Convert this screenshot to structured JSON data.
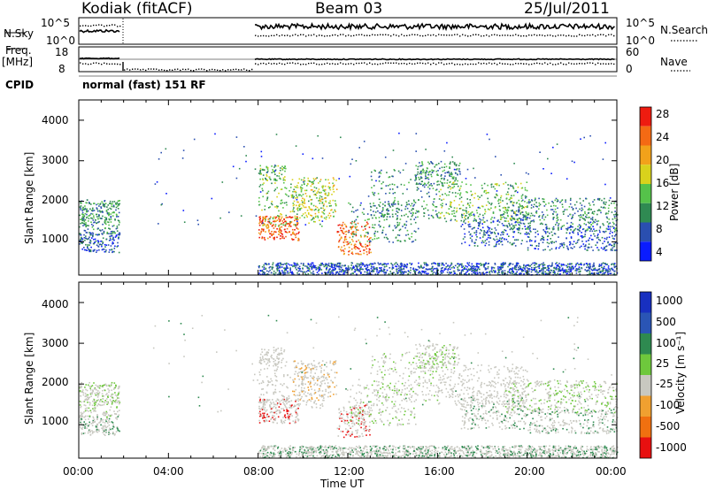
{
  "header": {
    "station": "Kodiak (fitACF)",
    "beam": "Beam 03",
    "date": "25/Jul/2011"
  },
  "strips": {
    "nsky_label": "N.Sky",
    "nsky_ticks": [
      "10^5",
      "10^0"
    ],
    "nsearch_label": "N.Search",
    "nsearch_ticks": [
      "10^5",
      "10^0"
    ],
    "freq_label_1": "Freq.",
    "freq_label_2": "[MHz]",
    "freq_ticks": [
      "18",
      "8"
    ],
    "nave_label": "Nave",
    "nave_ticks": [
      "60",
      "0"
    ],
    "cpid_label": "CPID",
    "cpid_value": "normal (fast) 151 RF"
  },
  "chart_data": [
    {
      "type": "heatmap",
      "name": "power",
      "ylabel": "Slant Range [km]",
      "yticks": [
        "1000",
        "2000",
        "3000",
        "4000"
      ],
      "ylim": [
        180,
        4500
      ],
      "colorbar_label": "Power [dB]",
      "colorbar_ticks": [
        "4",
        "8",
        "12",
        "16",
        "20",
        "24",
        "28"
      ],
      "colorbar_range": [
        0,
        30
      ],
      "colors": [
        "#0a1cff",
        "#2a4fb0",
        "#2f8a52",
        "#55c24a",
        "#d9d21c",
        "#f2a21a",
        "#f46a14",
        "#ee1c10"
      ]
    },
    {
      "type": "heatmap",
      "name": "velocity",
      "ylabel": "Slant Range [km]",
      "yticks": [
        "1000",
        "2000",
        "3000",
        "4000"
      ],
      "ylim": [
        180,
        4500
      ],
      "colorbar_label": "Velocity [m s⁻¹]",
      "colorbar_ticks": [
        "1000",
        "500",
        "100",
        "25",
        "-25",
        "-100",
        "-500",
        "-1000"
      ],
      "colors": [
        "#1830c0",
        "#2a55b5",
        "#2e8a50",
        "#6ec83c",
        "#c8c8c0",
        "#f0a030",
        "#f07010",
        "#e81010"
      ]
    }
  ],
  "xaxis": {
    "label": "Time UT",
    "ticks": [
      "00:00",
      "04:00",
      "08:00",
      "12:00",
      "16:00",
      "20:00",
      "00:00"
    ]
  }
}
